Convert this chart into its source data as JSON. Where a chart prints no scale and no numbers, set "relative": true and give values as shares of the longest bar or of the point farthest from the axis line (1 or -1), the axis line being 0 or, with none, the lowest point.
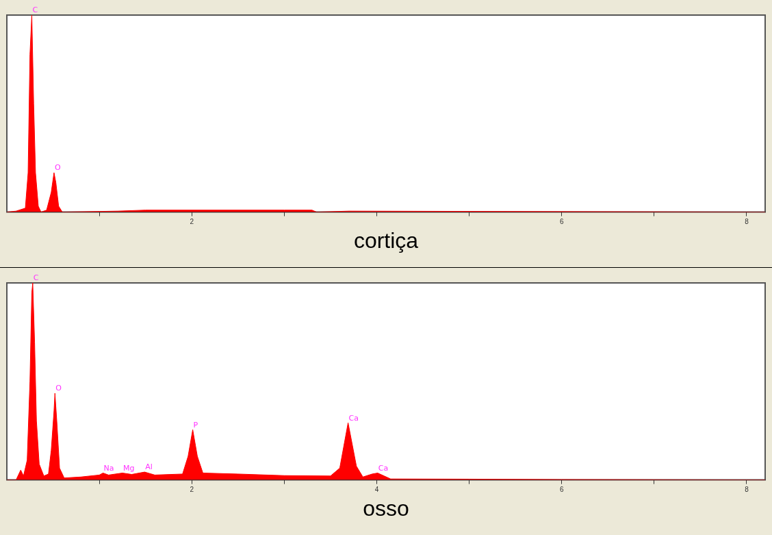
{
  "chart_data": [
    {
      "type": "area",
      "relative": true,
      "title": "cortiça",
      "grid": false,
      "legend": false,
      "marker": "none",
      "xlim": [
        0,
        8.2
      ],
      "xticks": [
        {
          "value": 1,
          "label": null
        },
        2,
        {
          "value": 3,
          "label": null
        },
        {
          "value": 4,
          "label": null
        },
        {
          "value": 5,
          "label": null
        },
        6,
        {
          "value": 7,
          "label": null
        },
        8
      ],
      "x": [
        0,
        0.1,
        0.2,
        0.23,
        0.25,
        0.27,
        0.29,
        0.31,
        0.34,
        0.37,
        0.43,
        0.48,
        0.51,
        0.53,
        0.56,
        0.6,
        1.2,
        1.5,
        3.0,
        3.3,
        3.35,
        3.7,
        8.2
      ],
      "series": [
        {
          "color": "#ff0000",
          "values": [
            0,
            0.005,
            0.02,
            0.2,
            0.8,
            1,
            0.55,
            0.2,
            0.03,
            0,
            0.01,
            0.1,
            0.2,
            0.15,
            0.03,
            0,
            0.005,
            0.01,
            0.01,
            0.01,
            0,
            0.005,
            0
          ]
        }
      ],
      "annotations": [
        {
          "text": "C",
          "x": 0.27,
          "y": 1
        },
        {
          "text": "O",
          "x": 0.51,
          "y": 0.2
        }
      ]
    },
    {
      "type": "area",
      "relative": true,
      "title": "osso",
      "grid": false,
      "legend": false,
      "marker": "none",
      "xlim": [
        0,
        8.2
      ],
      "xticks": [
        {
          "value": 1,
          "label": null
        },
        2,
        {
          "value": 3,
          "label": null
        },
        4,
        {
          "value": 5,
          "label": null
        },
        6,
        {
          "value": 7,
          "label": null
        },
        8
      ],
      "x": [
        0,
        0.1,
        0.15,
        0.18,
        0.22,
        0.25,
        0.27,
        0.28,
        0.3,
        0.32,
        0.35,
        0.4,
        0.45,
        0.48,
        0.51,
        0.52,
        0.54,
        0.57,
        0.62,
        0.8,
        1.0,
        1.04,
        1.1,
        1.25,
        1.35,
        1.49,
        1.6,
        1.9,
        1.96,
        2.01,
        2.06,
        2.12,
        2.5,
        3.0,
        3.5,
        3.6,
        3.69,
        3.78,
        3.85,
        3.95,
        4.01,
        4.08,
        4.15,
        5,
        6,
        7,
        8.2
      ],
      "series": [
        {
          "color": "#ff0000",
          "values": [
            0,
            0,
            0.05,
            0.02,
            0.1,
            0.5,
            0.95,
            1,
            0.7,
            0.3,
            0.08,
            0.02,
            0.03,
            0.15,
            0.35,
            0.44,
            0.3,
            0.06,
            0.01,
            0.015,
            0.025,
            0.035,
            0.025,
            0.035,
            0.028,
            0.04,
            0.025,
            0.03,
            0.12,
            0.255,
            0.12,
            0.035,
            0.03,
            0.022,
            0.02,
            0.06,
            0.29,
            0.07,
            0.015,
            0.03,
            0.035,
            0.02,
            0.005,
            0.004,
            0.002,
            0.001,
            0
          ]
        }
      ],
      "annotations": [
        {
          "text": "C",
          "x": 0.28,
          "y": 1
        },
        {
          "text": "O",
          "x": 0.52,
          "y": 0.44
        },
        {
          "text": "Na",
          "x": 1.04,
          "y": 0.035
        },
        {
          "text": "Mg",
          "x": 1.25,
          "y": 0.035
        },
        {
          "text": "Al",
          "x": 1.49,
          "y": 0.04
        },
        {
          "text": "P",
          "x": 2.01,
          "y": 0.255
        },
        {
          "text": "Ca",
          "x": 3.69,
          "y": 0.29
        },
        {
          "text": "Ca",
          "x": 4.01,
          "y": 0.035
        }
      ]
    }
  ]
}
